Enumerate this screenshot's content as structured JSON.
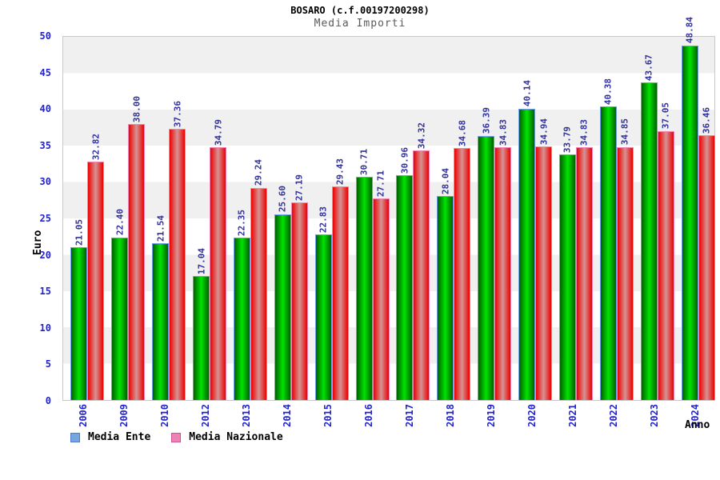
{
  "header": {
    "title": "BOSARO (c.f.00197200298)",
    "subtitle": "Media Importi"
  },
  "axes": {
    "y_label": "Euro",
    "x_label": "Anno"
  },
  "legend": [
    {
      "label": "Media Ente",
      "swatch_color": "#74a7e0"
    },
    {
      "label": "Media Nazionale",
      "swatch_color": "#ee82b4"
    }
  ],
  "chart_data": {
    "type": "bar",
    "title": "BOSARO (c.f.00197200298)",
    "subtitle": "Media Importi",
    "xlabel": "Anno",
    "ylabel": "Euro",
    "ylim": [
      0,
      50
    ],
    "y_ticks": [
      0,
      5,
      10,
      15,
      20,
      25,
      30,
      35,
      40,
      45,
      50
    ],
    "grid": "horizontal-bands-every-5",
    "legend_position": "bottom-left",
    "categories": [
      "2006",
      "2009",
      "2010",
      "2012",
      "2013",
      "2014",
      "2015",
      "2016",
      "2017",
      "2018",
      "2019",
      "2020",
      "2021",
      "2022",
      "2023",
      "2024"
    ],
    "series": [
      {
        "name": "Media Ente",
        "values": [
          "21.05",
          "22.40",
          "21.54",
          "17.04",
          "22.35",
          "25.60",
          "22.83",
          "30.71",
          "30.96",
          "28.04",
          "36.39",
          "40.14",
          "33.79",
          "40.38",
          "43.67",
          "48.84"
        ]
      },
      {
        "name": "Media Nazionale",
        "values": [
          "32.82",
          "38.00",
          "37.36",
          "34.79",
          "29.24",
          "27.19",
          "29.43",
          "27.71",
          "34.32",
          "34.68",
          "34.83",
          "34.94",
          "34.83",
          "34.85",
          "37.05",
          "36.46"
        ]
      }
    ]
  },
  "colors": {
    "ente_fill_edge": "#006000",
    "ente_fill_mid": "#00e400",
    "ente_border": "#6f9fe8",
    "nazionale_fill_edge": "#ee0000",
    "nazionale_fill_mid": "#d59494",
    "nazionale_border": "#f585b5",
    "value_label": "#31319c",
    "tick_label": "#2323cc",
    "band": "#f0f0f0",
    "plot_border": "#c8c8c8"
  }
}
